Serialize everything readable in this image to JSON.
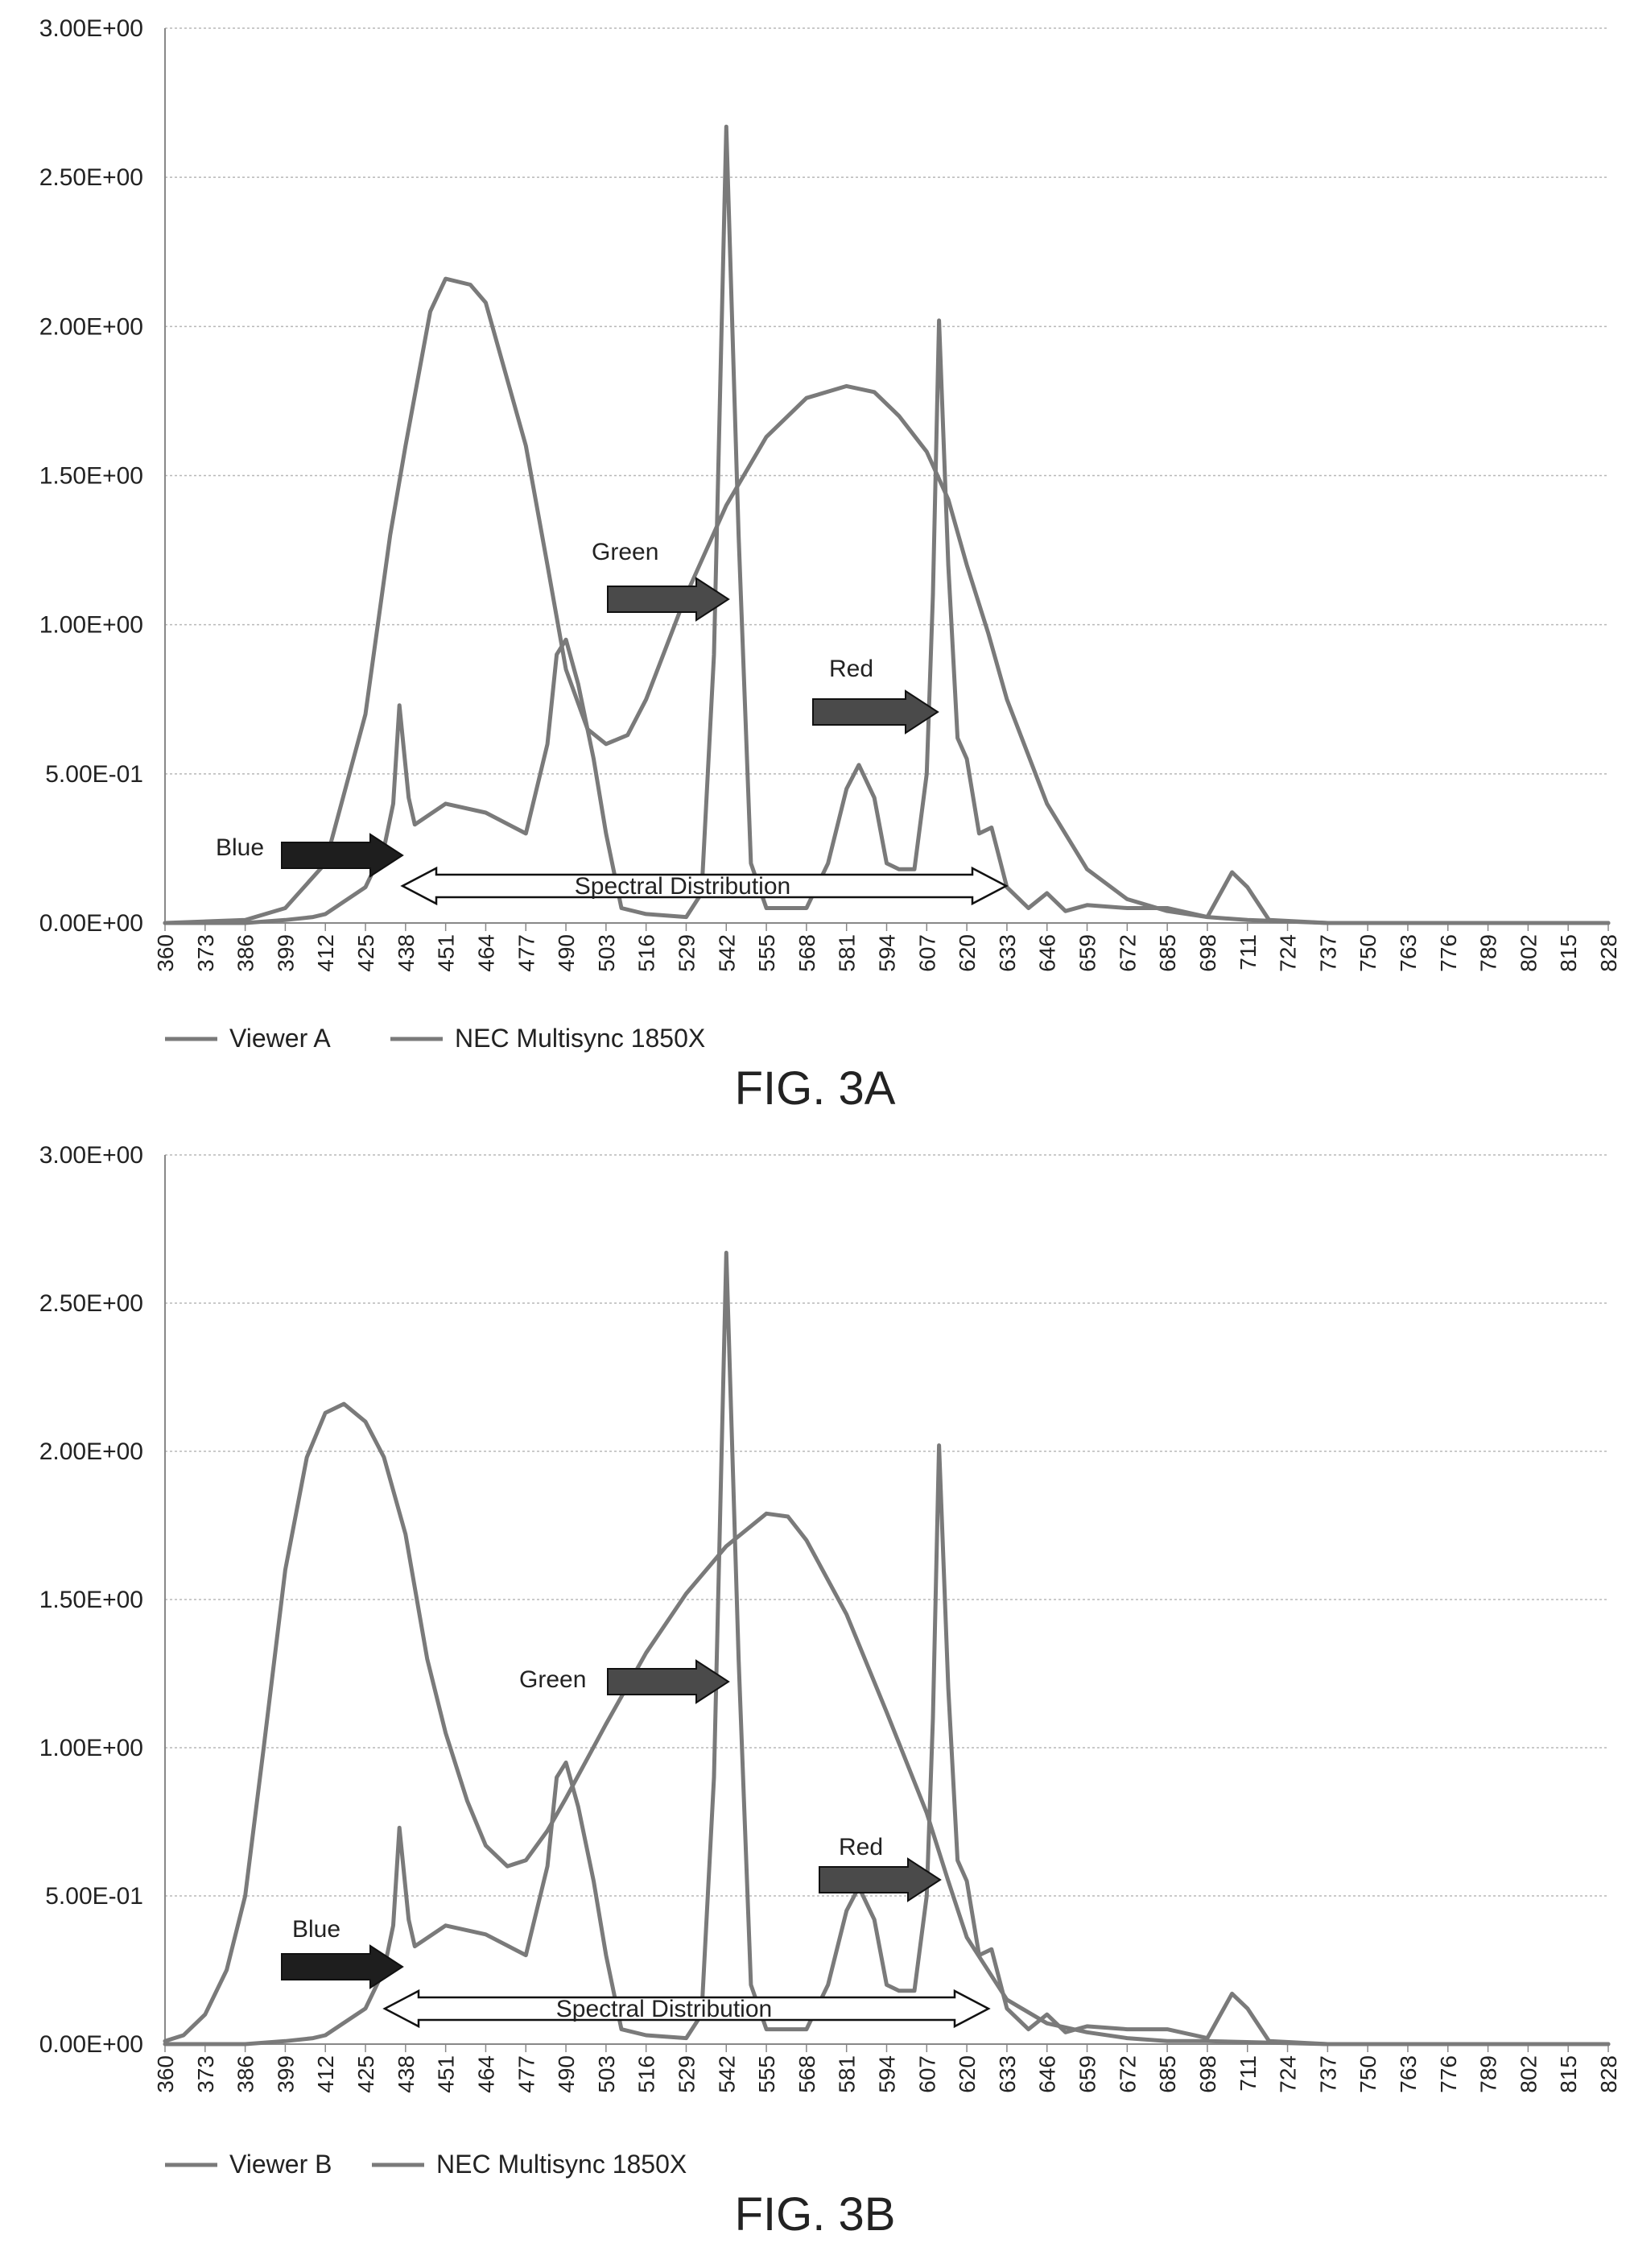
{
  "figures": [
    {
      "caption": "FIG. 3A",
      "chart_data": {
        "type": "line",
        "x_ticks": [
          360,
          373,
          386,
          399,
          412,
          425,
          438,
          451,
          464,
          477,
          490,
          503,
          516,
          529,
          542,
          555,
          568,
          581,
          594,
          607,
          620,
          633,
          646,
          659,
          672,
          685,
          698,
          711,
          724,
          737,
          750,
          763,
          776,
          789,
          802,
          815,
          828
        ],
        "ylim": [
          0,
          3.0
        ],
        "y_ticks": [
          "0.00E+00",
          "5.00E-01",
          "1.00E+00",
          "1.50E+00",
          "2.00E+00",
          "2.50E+00",
          "3.00E+00"
        ],
        "y_tick_values": [
          0,
          0.5,
          1.0,
          1.5,
          2.0,
          2.5,
          3.0
        ],
        "grid": true,
        "legend_position": "bottom-left",
        "series": [
          {
            "name": "Viewer A",
            "points": [
              [
                360,
                0
              ],
              [
                386,
                0.01
              ],
              [
                399,
                0.05
              ],
              [
                412,
                0.2
              ],
              [
                425,
                0.7
              ],
              [
                433,
                1.3
              ],
              [
                438,
                1.6
              ],
              [
                446,
                2.05
              ],
              [
                451,
                2.16
              ],
              [
                459,
                2.14
              ],
              [
                464,
                2.08
              ],
              [
                477,
                1.6
              ],
              [
                484,
                1.2
              ],
              [
                490,
                0.85
              ],
              [
                497,
                0.65
              ],
              [
                503,
                0.6
              ],
              [
                510,
                0.63
              ],
              [
                516,
                0.75
              ],
              [
                529,
                1.1
              ],
              [
                542,
                1.4
              ],
              [
                555,
                1.63
              ],
              [
                568,
                1.76
              ],
              [
                581,
                1.8
              ],
              [
                590,
                1.78
              ],
              [
                598,
                1.7
              ],
              [
                607,
                1.58
              ],
              [
                614,
                1.42
              ],
              [
                620,
                1.2
              ],
              [
                627,
                0.97
              ],
              [
                633,
                0.75
              ],
              [
                646,
                0.4
              ],
              [
                659,
                0.18
              ],
              [
                672,
                0.08
              ],
              [
                685,
                0.04
              ],
              [
                698,
                0.02
              ],
              [
                711,
                0.01
              ],
              [
                737,
                0
              ],
              [
                828,
                0
              ]
            ]
          },
          {
            "name": "NEC Multisync 1850X",
            "points": [
              [
                360,
                0
              ],
              [
                386,
                0
              ],
              [
                399,
                0.01
              ],
              [
                408,
                0.02
              ],
              [
                412,
                0.03
              ],
              [
                425,
                0.12
              ],
              [
                431,
                0.25
              ],
              [
                434,
                0.4
              ],
              [
                436,
                0.73
              ],
              [
                439,
                0.42
              ],
              [
                441,
                0.33
              ],
              [
                451,
                0.4
              ],
              [
                464,
                0.37
              ],
              [
                477,
                0.3
              ],
              [
                484,
                0.6
              ],
              [
                487,
                0.9
              ],
              [
                490,
                0.95
              ],
              [
                494,
                0.8
              ],
              [
                499,
                0.55
              ],
              [
                503,
                0.3
              ],
              [
                508,
                0.05
              ],
              [
                516,
                0.03
              ],
              [
                529,
                0.02
              ],
              [
                534,
                0.1
              ],
              [
                538,
                0.9
              ],
              [
                542,
                2.67
              ],
              [
                546,
                1.3
              ],
              [
                550,
                0.2
              ],
              [
                555,
                0.05
              ],
              [
                568,
                0.05
              ],
              [
                575,
                0.2
              ],
              [
                581,
                0.45
              ],
              [
                585,
                0.53
              ],
              [
                590,
                0.42
              ],
              [
                594,
                0.2
              ],
              [
                598,
                0.18
              ],
              [
                603,
                0.18
              ],
              [
                607,
                0.5
              ],
              [
                609,
                1.1
              ],
              [
                611,
                2.02
              ],
              [
                614,
                1.2
              ],
              [
                617,
                0.62
              ],
              [
                620,
                0.55
              ],
              [
                624,
                0.3
              ],
              [
                628,
                0.32
              ],
              [
                633,
                0.12
              ],
              [
                640,
                0.05
              ],
              [
                646,
                0.1
              ],
              [
                652,
                0.04
              ],
              [
                659,
                0.06
              ],
              [
                672,
                0.05
              ],
              [
                685,
                0.05
              ],
              [
                698,
                0.02
              ],
              [
                706,
                0.17
              ],
              [
                711,
                0.12
              ],
              [
                718,
                0.01
              ],
              [
                737,
                0
              ],
              [
                828,
                0
              ]
            ]
          }
        ],
        "annotations": {
          "green": "Green",
          "red": "Red",
          "blue": "Blue",
          "spectral": "Spectral Distribution"
        }
      }
    },
    {
      "caption": "FIG. 3B",
      "chart_data": {
        "type": "line",
        "x_ticks": [
          360,
          373,
          386,
          399,
          412,
          425,
          438,
          451,
          464,
          477,
          490,
          503,
          516,
          529,
          542,
          555,
          568,
          581,
          594,
          607,
          620,
          633,
          646,
          659,
          672,
          685,
          698,
          711,
          724,
          737,
          750,
          763,
          776,
          789,
          802,
          815,
          828
        ],
        "ylim": [
          0,
          3.0
        ],
        "y_ticks": [
          "0.00E+00",
          "5.00E-01",
          "1.00E+00",
          "1.50E+00",
          "2.00E+00",
          "2.50E+00",
          "3.00E+00"
        ],
        "y_tick_values": [
          0,
          0.5,
          1.0,
          1.5,
          2.0,
          2.5,
          3.0
        ],
        "grid": true,
        "legend_position": "bottom-left",
        "series": [
          {
            "name": "Viewer B",
            "points": [
              [
                360,
                0.01
              ],
              [
                366,
                0.03
              ],
              [
                373,
                0.1
              ],
              [
                380,
                0.25
              ],
              [
                386,
                0.5
              ],
              [
                392,
                1.0
              ],
              [
                399,
                1.6
              ],
              [
                406,
                1.98
              ],
              [
                412,
                2.13
              ],
              [
                418,
                2.16
              ],
              [
                425,
                2.1
              ],
              [
                431,
                1.98
              ],
              [
                438,
                1.72
              ],
              [
                445,
                1.3
              ],
              [
                451,
                1.05
              ],
              [
                458,
                0.82
              ],
              [
                464,
                0.67
              ],
              [
                471,
                0.6
              ],
              [
                477,
                0.62
              ],
              [
                484,
                0.72
              ],
              [
                490,
                0.83
              ],
              [
                503,
                1.08
              ],
              [
                516,
                1.32
              ],
              [
                529,
                1.52
              ],
              [
                542,
                1.68
              ],
              [
                555,
                1.79
              ],
              [
                562,
                1.78
              ],
              [
                568,
                1.7
              ],
              [
                581,
                1.45
              ],
              [
                594,
                1.12
              ],
              [
                607,
                0.78
              ],
              [
                614,
                0.55
              ],
              [
                620,
                0.36
              ],
              [
                633,
                0.15
              ],
              [
                646,
                0.07
              ],
              [
                659,
                0.04
              ],
              [
                672,
                0.02
              ],
              [
                685,
                0.01
              ],
              [
                698,
                0.01
              ],
              [
                737,
                0
              ],
              [
                828,
                0
              ]
            ]
          },
          {
            "name": "NEC Multisync 1850X",
            "points": [
              [
                360,
                0
              ],
              [
                386,
                0
              ],
              [
                399,
                0.01
              ],
              [
                408,
                0.02
              ],
              [
                412,
                0.03
              ],
              [
                425,
                0.12
              ],
              [
                431,
                0.25
              ],
              [
                434,
                0.4
              ],
              [
                436,
                0.73
              ],
              [
                439,
                0.42
              ],
              [
                441,
                0.33
              ],
              [
                451,
                0.4
              ],
              [
                464,
                0.37
              ],
              [
                477,
                0.3
              ],
              [
                484,
                0.6
              ],
              [
                487,
                0.9
              ],
              [
                490,
                0.95
              ],
              [
                494,
                0.8
              ],
              [
                499,
                0.55
              ],
              [
                503,
                0.3
              ],
              [
                508,
                0.05
              ],
              [
                516,
                0.03
              ],
              [
                529,
                0.02
              ],
              [
                534,
                0.1
              ],
              [
                538,
                0.9
              ],
              [
                542,
                2.67
              ],
              [
                546,
                1.3
              ],
              [
                550,
                0.2
              ],
              [
                555,
                0.05
              ],
              [
                568,
                0.05
              ],
              [
                575,
                0.2
              ],
              [
                581,
                0.45
              ],
              [
                585,
                0.53
              ],
              [
                590,
                0.42
              ],
              [
                594,
                0.2
              ],
              [
                598,
                0.18
              ],
              [
                603,
                0.18
              ],
              [
                607,
                0.5
              ],
              [
                609,
                1.1
              ],
              [
                611,
                2.02
              ],
              [
                614,
                1.2
              ],
              [
                617,
                0.62
              ],
              [
                620,
                0.55
              ],
              [
                624,
                0.3
              ],
              [
                628,
                0.32
              ],
              [
                633,
                0.12
              ],
              [
                640,
                0.05
              ],
              [
                646,
                0.1
              ],
              [
                652,
                0.04
              ],
              [
                659,
                0.06
              ],
              [
                672,
                0.05
              ],
              [
                685,
                0.05
              ],
              [
                698,
                0.02
              ],
              [
                706,
                0.17
              ],
              [
                711,
                0.12
              ],
              [
                718,
                0.01
              ],
              [
                737,
                0
              ],
              [
                828,
                0
              ]
            ]
          }
        ],
        "annotations": {
          "green": "Green",
          "red": "Red",
          "blue": "Blue",
          "spectral": "Spectral Distribution"
        }
      }
    }
  ],
  "colors": {
    "line": "#7a7a7a",
    "grid": "#b8b8b8",
    "axis": "#888888",
    "arrow_dark": "#1e1e1e",
    "arrow_mid": "#4a4a4a",
    "text": "#222222"
  }
}
